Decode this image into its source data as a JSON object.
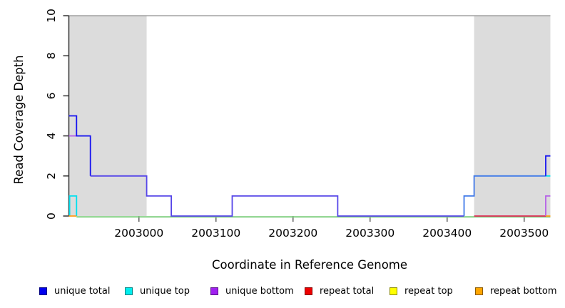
{
  "chart_data": {
    "type": "line",
    "subtype": "step-coverage",
    "title": "",
    "xlabel": "Coordinate in Reference Genome",
    "ylabel": "Read Coverage Depth",
    "xlim": [
      2002909,
      2003534
    ],
    "ylim": [
      0,
      10
    ],
    "grid": false,
    "x_ticks": [
      2003000,
      2003100,
      2003200,
      2003300,
      2003400,
      2003500
    ],
    "x_tick_labels": [
      "2003000",
      "2003100",
      "2003200",
      "2003300",
      "2003400",
      "2003500"
    ],
    "y_ticks": [
      0,
      2,
      4,
      6,
      8,
      10
    ],
    "y_tick_labels": [
      "0",
      "2",
      "4",
      "6",
      "8",
      "10"
    ],
    "shaded_regions": [
      {
        "name": "left-repeat-region",
        "x0": 2002909,
        "x1": 2003010,
        "color": "#DCDCDC"
      },
      {
        "name": "right-repeat-region",
        "x0": 2003435,
        "x1": 2003534,
        "color": "#DCDCDC"
      }
    ],
    "reference_line": {
      "y": 10,
      "color": "#8F8F8F"
    },
    "baseline": {
      "y": 0,
      "color": "#7CCD7C",
      "x0": 2002919,
      "x1": 2003534
    },
    "series": [
      {
        "name": "unique total",
        "color": "#0000EE",
        "steps": [
          [
            2002909,
            5
          ],
          [
            2002919,
            4
          ],
          [
            2002937,
            2
          ],
          [
            2003010,
            1
          ],
          [
            2003042,
            0
          ],
          [
            2003121,
            1
          ],
          [
            2003258,
            0
          ],
          [
            2003422,
            1
          ],
          [
            2003435,
            2
          ],
          [
            2003528,
            3
          ]
        ],
        "end": 2003534
      },
      {
        "name": "unique top",
        "color": "#00EEEE",
        "steps": [
          [
            2002909,
            1
          ],
          [
            2002919,
            0
          ],
          [
            2003422,
            1
          ],
          [
            2003435,
            2
          ]
        ],
        "end": 2003534
      },
      {
        "name": "unique bottom",
        "color": "#A020F0",
        "steps": [
          [
            2002909,
            4
          ],
          [
            2002937,
            2
          ],
          [
            2003010,
            1
          ],
          [
            2003042,
            0
          ],
          [
            2003121,
            1
          ],
          [
            2003258,
            0
          ],
          [
            2003528,
            1
          ]
        ],
        "end": 2003534
      },
      {
        "name": "repeat total",
        "color": "#EE0000",
        "steps": [
          [
            2003435,
            0
          ]
        ],
        "end": 2003534
      },
      {
        "name": "repeat top",
        "color": "#FFFF00",
        "steps": [],
        "end": 2003534
      },
      {
        "name": "repeat bottom",
        "color": "#FFA500",
        "steps": [
          [
            2002909,
            0
          ]
        ],
        "end": 2002919
      }
    ],
    "visible_segments": [
      {
        "series": "baseline",
        "color": "#7CCD7C",
        "offset": 1.2,
        "points": [
          [
            2002919,
            0
          ],
          [
            2003534,
            0
          ]
        ]
      },
      {
        "series": "unique bottom",
        "color": "#B45FE8",
        "points": [
          [
            2002909,
            4
          ],
          [
            2002919,
            4
          ]
        ]
      },
      {
        "series": "unique total",
        "color": "#1512F0",
        "points": [
          [
            2002909,
            5
          ],
          [
            2002919,
            5
          ],
          [
            2002919,
            4
          ],
          [
            2002937,
            4
          ],
          [
            2002937,
            2
          ]
        ]
      },
      {
        "series": "unique total + unique bottom",
        "color": "#5646E8",
        "points": [
          [
            2002937,
            2
          ],
          [
            2003010,
            2
          ],
          [
            2003010,
            1
          ],
          [
            2003042,
            1
          ],
          [
            2003042,
            0
          ],
          [
            2003121,
            0
          ],
          [
            2003121,
            1
          ],
          [
            2003258,
            1
          ],
          [
            2003258,
            0
          ],
          [
            2003422,
            0
          ]
        ]
      },
      {
        "series": "unique total + unique top",
        "color": "#3F79E8",
        "points": [
          [
            2003422,
            0
          ],
          [
            2003422,
            1
          ],
          [
            2003435,
            1
          ],
          [
            2003435,
            2
          ],
          [
            2003528,
            2
          ]
        ]
      },
      {
        "series": "unique top",
        "color": "#00E0EE",
        "points": [
          [
            2002910,
            0
          ],
          [
            2002910,
            1
          ],
          [
            2002919,
            1
          ],
          [
            2002919,
            0
          ]
        ]
      },
      {
        "series": "repeat total",
        "color": "#DF2D55",
        "points": [
          [
            2003435,
            0
          ],
          [
            2003529,
            0
          ]
        ]
      },
      {
        "series": "repeat bottom",
        "color": "#FF9E1C",
        "points": [
          [
            2002909,
            0
          ],
          [
            2002919,
            0
          ]
        ]
      },
      {
        "series": "unique top",
        "color": "#00E0EE",
        "points": [
          [
            2003528,
            2
          ],
          [
            2003534,
            2
          ]
        ]
      },
      {
        "series": "unique total",
        "color": "#1512F0",
        "points": [
          [
            2003528,
            2
          ],
          [
            2003528,
            3
          ],
          [
            2003534,
            3
          ]
        ]
      },
      {
        "series": "unique bottom",
        "color": "#B45FE8",
        "points": [
          [
            2003528,
            0
          ],
          [
            2003528,
            1
          ],
          [
            2003534,
            1
          ]
        ]
      },
      {
        "series": "repeat bottom",
        "color": "#FF9E1C",
        "points": [
          [
            2003528,
            0
          ],
          [
            2003534,
            0
          ]
        ]
      }
    ]
  },
  "legend": {
    "items": [
      {
        "label": "unique total",
        "color": "#0000EE"
      },
      {
        "label": "unique top",
        "color": "#00EEEE"
      },
      {
        "label": "unique bottom",
        "color": "#A020F0"
      },
      {
        "label": "repeat total",
        "color": "#EE0000"
      },
      {
        "label": "repeat top",
        "color": "#FFFF00"
      },
      {
        "label": "repeat bottom",
        "color": "#FFA500"
      }
    ]
  }
}
